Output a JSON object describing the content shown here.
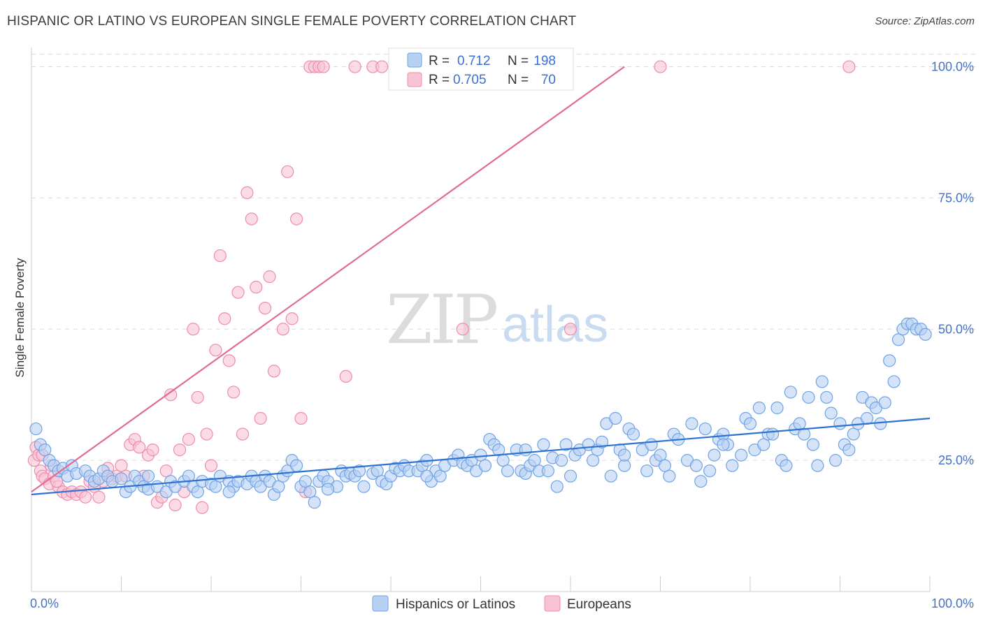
{
  "title": "HISPANIC OR LATINO VS EUROPEAN SINGLE FEMALE POVERTY CORRELATION CHART",
  "source": "Source: ZipAtlas.com",
  "watermark": {
    "part1": "ZIP",
    "part2": "atlas"
  },
  "chart_data": {
    "type": "scatter",
    "title": "HISPANIC OR LATINO VS EUROPEAN SINGLE FEMALE POVERTY CORRELATION CHART",
    "xlabel": "",
    "ylabel": "Single Female Poverty",
    "xlim": [
      0,
      100
    ],
    "ylim": [
      0,
      103
    ],
    "x_ticks": [
      "0.0%",
      "100.0%"
    ],
    "y_ticks": [
      {
        "value": 25,
        "label": "25.0%"
      },
      {
        "value": 50,
        "label": "50.0%"
      },
      {
        "value": 75,
        "label": "75.0%"
      },
      {
        "value": 100,
        "label": "100.0%"
      }
    ],
    "grid": "horizontal dashed",
    "legend_position": "top-center",
    "series": [
      {
        "name": "Hispanics or Latinos",
        "color": "#6fa3e6",
        "fill": "#b7d1f3",
        "line_color": "#2e72d2",
        "R": "0.712",
        "N": "198",
        "trend": {
          "x": [
            0,
            100
          ],
          "y": [
            18.5,
            33
          ]
        },
        "points": [
          [
            0.5,
            31
          ],
          [
            1,
            28
          ],
          [
            1.5,
            27
          ],
          [
            2,
            25
          ],
          [
            2.5,
            24
          ],
          [
            3,
            23
          ],
          [
            3.5,
            23.5
          ],
          [
            4,
            22
          ],
          [
            4.5,
            24
          ],
          [
            5,
            22.5
          ],
          [
            6,
            23
          ],
          [
            6.5,
            22
          ],
          [
            7,
            21
          ],
          [
            7.5,
            21.5
          ],
          [
            8,
            23
          ],
          [
            8.5,
            22
          ],
          [
            9,
            21
          ],
          [
            10,
            21.5
          ],
          [
            10.5,
            19
          ],
          [
            11,
            20
          ],
          [
            11.5,
            22
          ],
          [
            12,
            21
          ],
          [
            12.5,
            20
          ],
          [
            13,
            19.5
          ],
          [
            14,
            20
          ],
          [
            15,
            19
          ],
          [
            15.5,
            21
          ],
          [
            16,
            20
          ],
          [
            17,
            21
          ],
          [
            17.5,
            22
          ],
          [
            18,
            20
          ],
          [
            18.5,
            19
          ],
          [
            19,
            21
          ],
          [
            20,
            20.5
          ],
          [
            20.5,
            20
          ],
          [
            21,
            22
          ],
          [
            22,
            21
          ],
          [
            22.5,
            20
          ],
          [
            23,
            21
          ],
          [
            24,
            20.5
          ],
          [
            24.5,
            22
          ],
          [
            25,
            21
          ],
          [
            25.5,
            20
          ],
          [
            26,
            22
          ],
          [
            26.5,
            21
          ],
          [
            27,
            18.5
          ],
          [
            27.5,
            20
          ],
          [
            28,
            22
          ],
          [
            28.5,
            23
          ],
          [
            29,
            25
          ],
          [
            29.5,
            24
          ],
          [
            30,
            20
          ],
          [
            30.5,
            21
          ],
          [
            31,
            19
          ],
          [
            31.5,
            17
          ],
          [
            32,
            21
          ],
          [
            32.5,
            22
          ],
          [
            33,
            21
          ],
          [
            34,
            20
          ],
          [
            34.5,
            23
          ],
          [
            35,
            22
          ],
          [
            35.5,
            22.5
          ],
          [
            36,
            22
          ],
          [
            36.5,
            23
          ],
          [
            37,
            20
          ],
          [
            38,
            22.5
          ],
          [
            38.5,
            23
          ],
          [
            39,
            21
          ],
          [
            39.5,
            20.5
          ],
          [
            40,
            22
          ],
          [
            40.5,
            23.5
          ],
          [
            41,
            23
          ],
          [
            41.5,
            24
          ],
          [
            42,
            23
          ],
          [
            43,
            23
          ],
          [
            43.5,
            24
          ],
          [
            44,
            25
          ],
          [
            44.5,
            21
          ],
          [
            45,
            23
          ],
          [
            45.5,
            22
          ],
          [
            46,
            24
          ],
          [
            47,
            25
          ],
          [
            47.5,
            26
          ],
          [
            48,
            24.5
          ],
          [
            48.5,
            24
          ],
          [
            49,
            25
          ],
          [
            49.5,
            23
          ],
          [
            50,
            26
          ],
          [
            50.5,
            24
          ],
          [
            51,
            29
          ],
          [
            51.5,
            28
          ],
          [
            52,
            27
          ],
          [
            52.5,
            25
          ],
          [
            53,
            23
          ],
          [
            54,
            27
          ],
          [
            54.5,
            23
          ],
          [
            55,
            22.5
          ],
          [
            55.5,
            24
          ],
          [
            56,
            25
          ],
          [
            56.5,
            23
          ],
          [
            57,
            28
          ],
          [
            57.5,
            23
          ],
          [
            58,
            25.5
          ],
          [
            58.5,
            20
          ],
          [
            59,
            25
          ],
          [
            59.5,
            28
          ],
          [
            60,
            22
          ],
          [
            60.5,
            26
          ],
          [
            61,
            27
          ],
          [
            62,
            28
          ],
          [
            62.5,
            25
          ],
          [
            63,
            27
          ],
          [
            63.5,
            28.5
          ],
          [
            64,
            32
          ],
          [
            64.5,
            22
          ],
          [
            65,
            33
          ],
          [
            65.5,
            27
          ],
          [
            66,
            24
          ],
          [
            66.5,
            31
          ],
          [
            67,
            30
          ],
          [
            68,
            27
          ],
          [
            68.5,
            23
          ],
          [
            69,
            28
          ],
          [
            69.5,
            25
          ],
          [
            70,
            26
          ],
          [
            70.5,
            24
          ],
          [
            71,
            22
          ],
          [
            71.5,
            30
          ],
          [
            72,
            29
          ],
          [
            73,
            25
          ],
          [
            73.5,
            32
          ],
          [
            74,
            24
          ],
          [
            74.5,
            21
          ],
          [
            75,
            31
          ],
          [
            75.5,
            23
          ],
          [
            76,
            26
          ],
          [
            76.5,
            29
          ],
          [
            77,
            30
          ],
          [
            77.5,
            28
          ],
          [
            78,
            24
          ],
          [
            79,
            26
          ],
          [
            79.5,
            33
          ],
          [
            80,
            32
          ],
          [
            80.5,
            27
          ],
          [
            81,
            35
          ],
          [
            81.5,
            28
          ],
          [
            82,
            30
          ],
          [
            82.5,
            30
          ],
          [
            83,
            35
          ],
          [
            83.5,
            25
          ],
          [
            84,
            24
          ],
          [
            84.5,
            38
          ],
          [
            85,
            31
          ],
          [
            85.5,
            32
          ],
          [
            86,
            30
          ],
          [
            86.5,
            37
          ],
          [
            87,
            28
          ],
          [
            87.5,
            24
          ],
          [
            88,
            40
          ],
          [
            88.5,
            37
          ],
          [
            89,
            34
          ],
          [
            89.5,
            25
          ],
          [
            90,
            32
          ],
          [
            90.5,
            28
          ],
          [
            91,
            27
          ],
          [
            91.5,
            30
          ],
          [
            92,
            32
          ],
          [
            92.5,
            37
          ],
          [
            93,
            33
          ],
          [
            93.5,
            36
          ],
          [
            94,
            35
          ],
          [
            94.5,
            32
          ],
          [
            95,
            36
          ],
          [
            95.5,
            44
          ],
          [
            96,
            40
          ],
          [
            96.5,
            48
          ],
          [
            97,
            50
          ],
          [
            97.5,
            51
          ],
          [
            98,
            51
          ],
          [
            98.5,
            50
          ],
          [
            99,
            50
          ],
          [
            99.5,
            49
          ],
          [
            13,
            22
          ],
          [
            22,
            19
          ],
          [
            33,
            19.5
          ],
          [
            44,
            22
          ],
          [
            55,
            27
          ],
          [
            66,
            26
          ],
          [
            77,
            28
          ]
        ]
      },
      {
        "name": "Europeans",
        "color": "#f08cab",
        "fill": "#f8c3d3",
        "line_color": "#e06c94",
        "R": "0.705",
        "N": "70",
        "trend": {
          "x": [
            0,
            66
          ],
          "y": [
            19,
            100
          ]
        },
        "points": [
          [
            0.3,
            25
          ],
          [
            0.5,
            27.5
          ],
          [
            0.8,
            26
          ],
          [
            1,
            23
          ],
          [
            1.2,
            22
          ],
          [
            1.5,
            21.5
          ],
          [
            2,
            20.5
          ],
          [
            2.2,
            24
          ],
          [
            2.5,
            22
          ],
          [
            3,
            20
          ],
          [
            3.5,
            19
          ],
          [
            4,
            18.5
          ],
          [
            4.5,
            19
          ],
          [
            5,
            18.5
          ],
          [
            5.5,
            19
          ],
          [
            6,
            18
          ],
          [
            6.5,
            21
          ],
          [
            7,
            20
          ],
          [
            7.5,
            18
          ],
          [
            8,
            21
          ],
          [
            8.5,
            23.5
          ],
          [
            9,
            21.5
          ],
          [
            9.5,
            22
          ],
          [
            10,
            24
          ],
          [
            10.5,
            22
          ],
          [
            11,
            28
          ],
          [
            11.5,
            29
          ],
          [
            12,
            27.5
          ],
          [
            12.5,
            22
          ],
          [
            13,
            26
          ],
          [
            13.5,
            27
          ],
          [
            14,
            17
          ],
          [
            14.5,
            18
          ],
          [
            15,
            23
          ],
          [
            15.5,
            37.5
          ],
          [
            16,
            16.5
          ],
          [
            16.5,
            27
          ],
          [
            17,
            19
          ],
          [
            17.5,
            29
          ],
          [
            18,
            50
          ],
          [
            18.5,
            37
          ],
          [
            19,
            16
          ],
          [
            19.5,
            30
          ],
          [
            20,
            24
          ],
          [
            20.5,
            46
          ],
          [
            21,
            64
          ],
          [
            21.5,
            52
          ],
          [
            22,
            44
          ],
          [
            22.5,
            38
          ],
          [
            23,
            57
          ],
          [
            23.5,
            30
          ],
          [
            24,
            76
          ],
          [
            24.5,
            71
          ],
          [
            25,
            58
          ],
          [
            25.5,
            33
          ],
          [
            26,
            54
          ],
          [
            26.5,
            60
          ],
          [
            27,
            42
          ],
          [
            28,
            50
          ],
          [
            28.5,
            80
          ],
          [
            29,
            52
          ],
          [
            29.5,
            71
          ],
          [
            30,
            33
          ],
          [
            30.5,
            19
          ],
          [
            31,
            100
          ],
          [
            31.5,
            100
          ],
          [
            32,
            100
          ],
          [
            32.5,
            100
          ],
          [
            35,
            41
          ],
          [
            36,
            100
          ],
          [
            38,
            100
          ],
          [
            39,
            100
          ],
          [
            42,
            100
          ],
          [
            45,
            100
          ],
          [
            48,
            50
          ],
          [
            60,
            50
          ],
          [
            70,
            100
          ],
          [
            91,
            100
          ],
          [
            1.2,
            26
          ],
          [
            2.8,
            21
          ]
        ]
      }
    ]
  },
  "legend": {
    "r_label": "R =",
    "n_label": "N =",
    "items": [
      {
        "r": "0.712",
        "n": "198"
      },
      {
        "r": "0.705",
        "n": "70"
      }
    ]
  },
  "bottom_legend": [
    {
      "label": "Hispanics or Latinos"
    },
    {
      "label": "Europeans"
    }
  ]
}
